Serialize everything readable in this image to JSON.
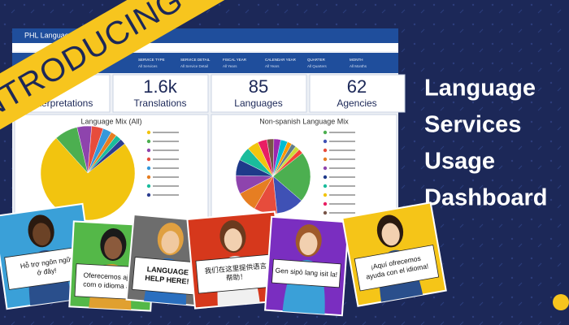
{
  "banner": "INTRODUCING",
  "headline": [
    "Language",
    "Services",
    "Usage",
    "Dashboard"
  ],
  "dashboard": {
    "title": "PHL Language Services",
    "filters": [
      {
        "label": "SERVICE TYPE",
        "value": "All Services"
      },
      {
        "label": "SERVICE DETAIL",
        "value": "All Service Detail"
      },
      {
        "label": "FISCAL YEAR",
        "value": "All Years"
      },
      {
        "label": "CALENDAR YEAR",
        "value": "All Years"
      },
      {
        "label": "QUARTER",
        "value": "All Quarters"
      },
      {
        "label": "MONTH",
        "value": "All Months"
      }
    ],
    "kpis": [
      {
        "label": "Interpretations"
      },
      {
        "value": "1.6k",
        "label": "Translations"
      },
      {
        "value": "85",
        "label": "Languages"
      },
      {
        "value": "62",
        "label": "Agencies"
      }
    ],
    "charts": [
      {
        "type": "pie",
        "title": "Language Mix (All)",
        "values": [
          74,
          8,
          5,
          4,
          3,
          2,
          2,
          2
        ],
        "colors": [
          "#f2c40f",
          "#4caf50",
          "#8e44ad",
          "#e74c3c",
          "#3498db",
          "#e67e22",
          "#1abc9c",
          "#2c3e90"
        ]
      },
      {
        "type": "pie",
        "title": "Non-spanish Language Mix",
        "values": [
          22,
          12,
          10,
          9,
          8,
          7,
          6,
          5,
          4,
          3,
          3,
          3,
          2,
          2,
          2,
          2
        ],
        "colors": [
          "#4caf50",
          "#3f51b5",
          "#e74c3c",
          "#e67e22",
          "#8e44ad",
          "#1e3a8a",
          "#1abc9c",
          "#f2c40f",
          "#e91e63",
          "#795548",
          "#9c27b0",
          "#00bcd4",
          "#ff9800",
          "#607d8b",
          "#cddc39",
          "#f44336"
        ]
      }
    ]
  },
  "cards": [
    {
      "lines": [
        "Hỗ trợ ngôn ngữ",
        "ở đây!"
      ]
    },
    {
      "lines": [
        "Oferecemos ajuda",
        "com o idioma aqui"
      ]
    },
    {
      "lines": [
        "LANGUAGE",
        "HELP HERE!"
      ]
    },
    {
      "lines": [
        "我们在这里提供语言",
        "帮助！"
      ]
    },
    {
      "lines": [
        "Gen sipò lang isit la!"
      ]
    },
    {
      "lines": [
        "¡Aquí ofrecemos",
        "ayuda con el idioma!"
      ]
    }
  ]
}
